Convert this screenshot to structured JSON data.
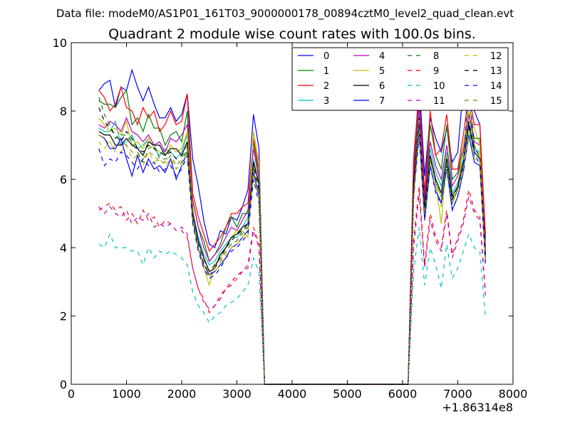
{
  "chart_data": {
    "type": "line",
    "suptitle": "Data file: modeM0/AS1P01_161T03_9000000178_00894cztM0_level2_quad_clean.evt",
    "title": "Quadrant 2 module wise count rates with 100.0s bins.",
    "xlabel": "",
    "ylabel": "",
    "x_offset_label": "+1.86314e8",
    "xlim": [
      0,
      8000
    ],
    "ylim": [
      0,
      10
    ],
    "x_ticks": [
      0,
      1000,
      2000,
      3000,
      4000,
      5000,
      6000,
      7000,
      8000
    ],
    "y_ticks": [
      0,
      2,
      4,
      6,
      8,
      10
    ],
    "x_tick_labels": [
      "0",
      "1000",
      "2000",
      "3000",
      "4000",
      "5000",
      "6000",
      "7000",
      "8000"
    ],
    "y_tick_labels": [
      "0",
      "2",
      "4",
      "6",
      "8",
      "10"
    ],
    "grid": false,
    "legend_position": "top-right",
    "x": [
      500,
      600,
      700,
      800,
      900,
      1000,
      1100,
      1200,
      1300,
      1400,
      1500,
      1600,
      1700,
      1800,
      1900,
      2000,
      2100,
      2200,
      2300,
      2400,
      2500,
      2600,
      2700,
      2800,
      2900,
      3000,
      3100,
      3200,
      3300,
      3400,
      3500,
      3600,
      3700,
      3800,
      3900,
      4000,
      4100,
      4200,
      4300,
      4400,
      4500,
      4600,
      4700,
      4800,
      4900,
      5000,
      5100,
      5200,
      5300,
      5400,
      5500,
      5600,
      5700,
      5800,
      5900,
      6000,
      6100,
      6200,
      6300,
      6400,
      6500,
      6600,
      6700,
      6800,
      6900,
      7000,
      7100,
      7200,
      7300,
      7400,
      7500
    ],
    "series": [
      {
        "name": "0",
        "color": "#0000ff",
        "dash": "solid",
        "values": [
          8.6,
          8.8,
          8.9,
          8.1,
          8.7,
          8.6,
          9.2,
          8.7,
          8.3,
          8.7,
          8.2,
          7.8,
          7.8,
          8.1,
          7.7,
          7.9,
          8.5,
          6.6,
          5.8,
          4.8,
          4.1,
          4.0,
          4.5,
          4.4,
          4.9,
          4.8,
          5.2,
          5.7,
          7.9,
          6.9,
          0,
          0,
          0,
          0,
          0,
          0,
          0,
          0,
          0,
          0,
          0,
          0,
          0,
          0,
          0,
          0,
          0,
          0,
          0,
          0,
          0,
          0,
          0,
          0,
          0,
          0,
          0,
          6.2,
          8.9,
          6.1,
          7.8,
          7.2,
          6.8,
          7.5,
          6.5,
          6.8,
          8.7,
          8.3,
          8.0,
          7.6,
          4.3
        ]
      },
      {
        "name": "1",
        "color": "#008000",
        "dash": "solid",
        "values": [
          8.3,
          8.2,
          8.2,
          8.1,
          8.4,
          8.6,
          7.6,
          7.8,
          7.4,
          7.9,
          7.5,
          7.5,
          7.0,
          7.3,
          7.4,
          7.1,
          8.0,
          5.4,
          4.6,
          4.2,
          3.6,
          3.8,
          4.1,
          4.6,
          4.9,
          4.6,
          5.0,
          5.0,
          7.1,
          6.1,
          0,
          0,
          0,
          0,
          0,
          0,
          0,
          0,
          0,
          0,
          0,
          0,
          0,
          0,
          0,
          0,
          0,
          0,
          0,
          0,
          0,
          0,
          0,
          0,
          0,
          0,
          0,
          6.4,
          8.3,
          5.3,
          7.6,
          6.7,
          6.3,
          7.6,
          6.0,
          6.2,
          7.0,
          7.9,
          7.2,
          7.2,
          4.2
        ]
      },
      {
        "name": "2",
        "color": "#ff0000",
        "dash": "solid",
        "values": [
          8.6,
          8.4,
          8.0,
          8.2,
          8.7,
          8.1,
          8.0,
          7.6,
          8.1,
          7.8,
          8.0,
          7.4,
          7.6,
          8.0,
          7.6,
          7.7,
          8.5,
          5.6,
          4.9,
          4.4,
          3.9,
          4.1,
          4.3,
          4.6,
          5.0,
          5.0,
          5.2,
          5.3,
          7.2,
          6.3,
          0,
          0,
          0,
          0,
          0,
          0,
          0,
          0,
          0,
          0,
          0,
          0,
          0,
          0,
          0,
          0,
          0,
          0,
          0,
          0,
          0,
          0,
          0,
          0,
          0,
          0,
          0,
          6.6,
          8.6,
          5.6,
          8.0,
          6.7,
          6.9,
          7.9,
          6.3,
          6.3,
          7.3,
          8.5,
          7.6,
          7.6,
          4.4
        ]
      },
      {
        "name": "3",
        "color": "#00bfbf",
        "dash": "solid",
        "values": [
          7.5,
          7.4,
          7.4,
          7.7,
          7.0,
          7.1,
          7.3,
          6.9,
          7.0,
          7.2,
          6.9,
          6.7,
          6.9,
          6.8,
          6.6,
          6.8,
          7.3,
          5.1,
          4.3,
          3.8,
          3.5,
          3.6,
          3.9,
          4.1,
          4.3,
          4.3,
          4.6,
          4.9,
          6.6,
          5.8,
          0,
          0,
          0,
          0,
          0,
          0,
          0,
          0,
          0,
          0,
          0,
          0,
          0,
          0,
          0,
          0,
          0,
          0,
          0,
          0,
          0,
          0,
          0,
          0,
          0,
          0,
          0,
          5.8,
          8.0,
          5.2,
          6.9,
          6.2,
          5.8,
          6.8,
          5.6,
          5.9,
          6.6,
          7.7,
          6.9,
          6.8,
          3.9
        ]
      },
      {
        "name": "4",
        "color": "#bf00bf",
        "dash": "solid",
        "values": [
          7.6,
          7.5,
          7.7,
          7.6,
          7.4,
          7.8,
          7.4,
          7.3,
          7.1,
          7.3,
          7.0,
          7.1,
          6.8,
          7.2,
          7.1,
          7.3,
          7.6,
          5.4,
          4.6,
          4.0,
          3.6,
          3.8,
          4.0,
          4.3,
          4.6,
          4.5,
          4.8,
          5.1,
          6.9,
          6.0,
          0,
          0,
          0,
          0,
          0,
          0,
          0,
          0,
          0,
          0,
          0,
          0,
          0,
          0,
          0,
          0,
          0,
          0,
          0,
          0,
          0,
          0,
          0,
          0,
          0,
          0,
          0,
          6.1,
          8.2,
          5.4,
          7.1,
          6.4,
          6.0,
          7.0,
          5.8,
          6.1,
          6.8,
          7.9,
          7.1,
          7.0,
          4.0
        ]
      },
      {
        "name": "5",
        "color": "#bfbf00",
        "dash": "solid",
        "values": [
          7.8,
          7.6,
          7.4,
          7.5,
          7.3,
          7.7,
          7.0,
          7.1,
          6.9,
          7.2,
          6.9,
          6.8,
          6.7,
          7.0,
          6.8,
          6.9,
          7.4,
          5.2,
          4.0,
          3.4,
          2.9,
          3.5,
          3.7,
          4.0,
          4.3,
          4.5,
          4.5,
          4.3,
          7.4,
          6.5,
          0,
          0,
          0,
          0,
          0,
          0,
          0,
          0,
          0,
          0,
          0,
          0,
          0,
          0,
          0,
          0,
          0,
          0,
          0,
          0,
          0,
          0,
          0,
          0,
          0,
          0,
          0,
          5.5,
          7.6,
          4.9,
          6.6,
          5.9,
          4.7,
          6.7,
          5.4,
          5.7,
          7.0,
          8.0,
          7.5,
          7.0,
          3.7
        ]
      },
      {
        "name": "6",
        "color": "#000000",
        "dash": "solid",
        "values": [
          7.4,
          7.3,
          7.3,
          7.0,
          7.0,
          7.2,
          7.0,
          6.9,
          6.7,
          7.1,
          7.0,
          7.0,
          6.7,
          6.9,
          6.9,
          6.7,
          7.1,
          5.0,
          4.2,
          3.7,
          3.3,
          3.4,
          3.8,
          4.0,
          4.3,
          4.4,
          4.6,
          4.7,
          6.5,
          5.9,
          0,
          0,
          0,
          0,
          0,
          0,
          0,
          0,
          0,
          0,
          0,
          0,
          0,
          0,
          0,
          0,
          0,
          0,
          0,
          0,
          0,
          0,
          0,
          0,
          0,
          0,
          0,
          5.9,
          7.6,
          5.2,
          6.7,
          6.0,
          5.6,
          6.6,
          5.5,
          5.8,
          6.5,
          7.6,
          6.8,
          6.6,
          3.8
        ]
      },
      {
        "name": "7",
        "color": "#0000ff",
        "dash": "solid",
        "values": [
          7.3,
          7.2,
          6.9,
          6.9,
          7.2,
          6.6,
          6.1,
          6.7,
          6.2,
          6.6,
          6.3,
          6.4,
          6.2,
          6.6,
          6.0,
          6.4,
          6.8,
          4.8,
          4.0,
          3.5,
          3.2,
          3.3,
          3.5,
          3.7,
          4.0,
          4.1,
          4.3,
          4.5,
          6.2,
          5.5,
          0,
          0,
          0,
          0,
          0,
          0,
          0,
          0,
          0,
          0,
          0,
          0,
          0,
          0,
          0,
          0,
          0,
          0,
          0,
          0,
          0,
          0,
          0,
          0,
          0,
          0,
          0,
          5.5,
          7.3,
          4.8,
          6.4,
          5.7,
          5.3,
          6.3,
          5.1,
          5.5,
          6.2,
          7.3,
          6.5,
          6.4,
          3.6
        ]
      },
      {
        "name": "8",
        "color": "#008000",
        "dash": "dashed",
        "values": [
          8.4,
          7.9,
          7.6,
          7.2,
          7.3,
          7.3,
          7.1,
          6.8,
          6.5,
          6.9,
          7.0,
          6.6,
          6.6,
          6.6,
          6.3,
          6.5,
          6.9,
          4.9,
          4.1,
          3.6,
          3.2,
          3.4,
          3.6,
          3.9,
          4.1,
          4.2,
          4.5,
          4.6,
          6.4,
          5.7,
          0,
          0,
          0,
          0,
          0,
          0,
          0,
          0,
          0,
          0,
          0,
          0,
          0,
          0,
          0,
          0,
          0,
          0,
          0,
          0,
          0,
          0,
          0,
          0,
          0,
          0,
          0,
          5.7,
          7.5,
          5.0,
          6.6,
          5.9,
          5.5,
          6.5,
          5.3,
          5.7,
          6.4,
          7.5,
          6.7,
          6.6,
          3.7
        ]
      },
      {
        "name": "9",
        "color": "#ff0000",
        "dash": "dashed",
        "values": [
          5.1,
          5.2,
          5.3,
          5.1,
          5.2,
          4.8,
          5.0,
          4.7,
          5.1,
          4.8,
          4.9,
          4.6,
          4.8,
          4.7,
          4.5,
          4.5,
          4.3,
          3.4,
          2.8,
          2.5,
          2.1,
          2.3,
          2.6,
          2.8,
          3.0,
          3.2,
          3.3,
          3.5,
          4.6,
          4.1,
          0,
          0,
          0,
          0,
          0,
          0,
          0,
          0,
          0,
          0,
          0,
          0,
          0,
          0,
          0,
          0,
          0,
          0,
          0,
          0,
          0,
          0,
          0,
          0,
          0,
          0,
          0,
          4.2,
          5.8,
          3.5,
          5.0,
          4.3,
          4.0,
          5.1,
          3.8,
          4.3,
          4.8,
          5.7,
          5.1,
          4.9,
          2.7
        ]
      },
      {
        "name": "10",
        "color": "#00bfbf",
        "dash": "dashed",
        "values": [
          4.1,
          4.0,
          4.4,
          4.0,
          4.0,
          4.0,
          3.9,
          3.9,
          3.5,
          4.0,
          3.7,
          3.9,
          3.8,
          3.9,
          3.8,
          3.7,
          3.5,
          2.7,
          2.3,
          2.1,
          1.8,
          2.0,
          2.1,
          2.3,
          2.4,
          2.5,
          2.7,
          2.9,
          3.7,
          3.3,
          0,
          0,
          0,
          0,
          0,
          0,
          0,
          0,
          0,
          0,
          0,
          0,
          0,
          0,
          0,
          0,
          0,
          0,
          0,
          0,
          0,
          0,
          0,
          0,
          0,
          0,
          0,
          3.3,
          4.6,
          2.9,
          4.0,
          3.5,
          2.8,
          4.1,
          3.1,
          3.4,
          3.9,
          4.4,
          4.0,
          3.9,
          2.0
        ]
      },
      {
        "name": "11",
        "color": "#bf00bf",
        "dash": "dashed",
        "values": [
          5.2,
          5.0,
          5.2,
          5.0,
          4.9,
          5.1,
          4.7,
          4.9,
          4.8,
          5.0,
          4.6,
          4.7,
          4.6,
          4.7,
          4.5,
          4.6,
          4.4,
          3.4,
          2.8,
          2.4,
          2.2,
          2.3,
          2.5,
          2.8,
          2.9,
          3.1,
          3.3,
          3.4,
          4.5,
          4.0,
          0,
          0,
          0,
          0,
          0,
          0,
          0,
          0,
          0,
          0,
          0,
          0,
          0,
          0,
          0,
          0,
          0,
          0,
          0,
          0,
          0,
          0,
          0,
          0,
          0,
          0,
          0,
          4.0,
          5.6,
          3.4,
          4.8,
          4.2,
          3.9,
          5.0,
          3.7,
          4.2,
          4.7,
          5.5,
          5.0,
          4.8,
          2.6
        ]
      },
      {
        "name": "12",
        "color": "#bfbf00",
        "dash": "dashed",
        "values": [
          7.1,
          6.9,
          7.1,
          6.8,
          6.8,
          7.0,
          6.6,
          6.7,
          6.4,
          6.8,
          6.5,
          6.6,
          6.4,
          6.6,
          6.3,
          6.4,
          6.8,
          4.8,
          4.0,
          3.5,
          3.1,
          3.3,
          3.5,
          3.8,
          4.0,
          4.1,
          4.3,
          4.5,
          6.1,
          5.4,
          0,
          0,
          0,
          0,
          0,
          0,
          0,
          0,
          0,
          0,
          0,
          0,
          0,
          0,
          0,
          0,
          0,
          0,
          0,
          0,
          0,
          0,
          0,
          0,
          0,
          0,
          0,
          5.4,
          7.4,
          4.8,
          6.4,
          5.7,
          5.2,
          6.3,
          5.1,
          5.5,
          6.2,
          7.4,
          6.6,
          6.5,
          3.5
        ]
      },
      {
        "name": "13",
        "color": "#000000",
        "dash": "dashed",
        "values": [
          8.1,
          7.7,
          7.5,
          7.3,
          7.1,
          7.4,
          7.2,
          6.9,
          6.8,
          7.0,
          6.9,
          6.8,
          6.7,
          6.8,
          6.6,
          6.7,
          7.1,
          5.0,
          4.2,
          3.7,
          3.3,
          3.5,
          3.7,
          4.0,
          4.2,
          4.4,
          4.5,
          4.7,
          6.4,
          5.7,
          0,
          0,
          0,
          0,
          0,
          0,
          0,
          0,
          0,
          0,
          0,
          0,
          0,
          0,
          0,
          0,
          0,
          0,
          0,
          0,
          0,
          0,
          0,
          0,
          0,
          0,
          0,
          5.8,
          7.8,
          5.1,
          6.7,
          6.0,
          5.6,
          6.6,
          5.4,
          5.8,
          6.5,
          7.7,
          6.9,
          6.7,
          3.8
        ]
      },
      {
        "name": "14",
        "color": "#0000ff",
        "dash": "dashed",
        "values": [
          6.9,
          6.4,
          6.6,
          6.5,
          6.8,
          6.7,
          6.5,
          6.3,
          6.6,
          6.4,
          6.5,
          6.2,
          6.3,
          6.4,
          6.1,
          6.3,
          6.7,
          4.7,
          3.9,
          3.4,
          3.1,
          3.2,
          3.4,
          3.7,
          3.9,
          4.0,
          4.2,
          4.4,
          6.0,
          5.3,
          0,
          0,
          0,
          0,
          0,
          0,
          0,
          0,
          0,
          0,
          0,
          0,
          0,
          0,
          0,
          0,
          0,
          0,
          0,
          0,
          0,
          0,
          0,
          0,
          0,
          0,
          0,
          5.4,
          7.7,
          4.8,
          6.4,
          5.6,
          5.3,
          6.4,
          5.1,
          5.5,
          6.3,
          8.9,
          6.8,
          6.4,
          3.5
        ]
      },
      {
        "name": "15",
        "color": "#808000",
        "dash": "dashed",
        "values": [
          7.3,
          7.2,
          7.0,
          6.9,
          7.1,
          7.0,
          6.8,
          6.7,
          6.6,
          6.8,
          6.7,
          6.5,
          6.5,
          6.7,
          6.4,
          6.6,
          7.0,
          4.9,
          4.1,
          3.6,
          3.2,
          3.4,
          3.6,
          3.9,
          4.1,
          4.2,
          4.4,
          4.6,
          6.3,
          5.6,
          0,
          0,
          0,
          0,
          0,
          0,
          0,
          0,
          0,
          0,
          0,
          0,
          0,
          0,
          0,
          0,
          0,
          0,
          0,
          0,
          0,
          0,
          0,
          0,
          0,
          0,
          0,
          5.6,
          7.7,
          5.0,
          6.6,
          5.9,
          5.5,
          6.5,
          5.3,
          5.7,
          6.4,
          8.4,
          7.0,
          6.6,
          3.7
        ]
      }
    ]
  }
}
